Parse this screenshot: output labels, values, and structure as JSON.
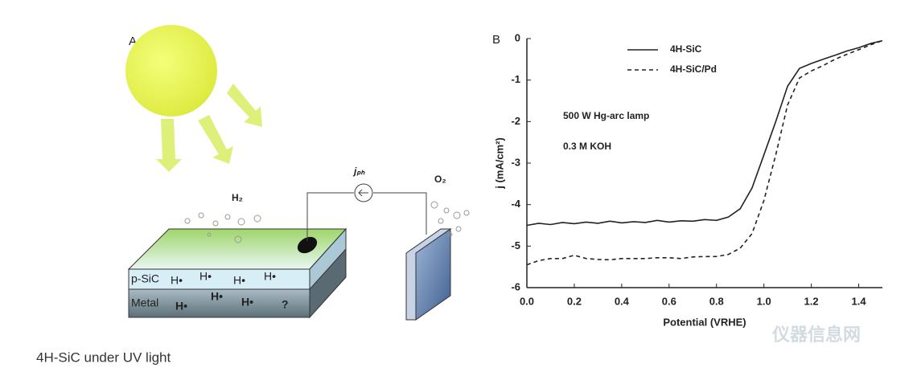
{
  "diagram": {
    "panel": "A",
    "h2": "H₂",
    "jph": "jₚₕ",
    "o2": "O₂",
    "layer_top": "p-SiC",
    "layer_bottom": "Metal",
    "top_radicals": [
      "H•",
      "H•",
      "H•",
      "H•"
    ],
    "bottom_radicals": [
      "H•",
      "H•",
      "H•",
      "?"
    ]
  },
  "chart_data": {
    "type": "line",
    "panel": "B",
    "x_label": "Potential (VRHE)",
    "y_label": "j (mA/cm²)",
    "annotations": [
      "500 W Hg-arc lamp",
      "0.3 M KOH"
    ],
    "x": [
      0,
      0.05,
      0.1,
      0.15,
      0.2,
      0.25,
      0.3,
      0.35,
      0.4,
      0.45,
      0.5,
      0.55,
      0.6,
      0.65,
      0.7,
      0.75,
      0.8,
      0.85,
      0.9,
      0.95,
      1.0,
      1.05,
      1.1,
      1.15,
      1.2,
      1.25,
      1.3,
      1.35,
      1.4,
      1.45,
      1.5
    ],
    "series": [
      {
        "name": "4H-SiC",
        "color": "#222222",
        "dashed": false,
        "values": [
          -4.5,
          -4.45,
          -4.48,
          -4.43,
          -4.46,
          -4.42,
          -4.45,
          -4.4,
          -4.44,
          -4.41,
          -4.43,
          -4.38,
          -4.42,
          -4.39,
          -4.4,
          -4.36,
          -4.38,
          -4.3,
          -4.1,
          -3.6,
          -2.8,
          -2.0,
          -1.15,
          -0.72,
          -0.6,
          -0.5,
          -0.4,
          -0.3,
          -0.22,
          -0.12,
          -0.05
        ]
      },
      {
        "name": "4H-SiC/Pd",
        "color": "#222222",
        "dashed": true,
        "values": [
          -5.45,
          -5.35,
          -5.3,
          -5.3,
          -5.22,
          -5.3,
          -5.32,
          -5.33,
          -5.3,
          -5.3,
          -5.3,
          -5.28,
          -5.28,
          -5.3,
          -5.26,
          -5.25,
          -5.25,
          -5.2,
          -5.05,
          -4.7,
          -3.9,
          -2.8,
          -1.6,
          -0.95,
          -0.78,
          -0.65,
          -0.5,
          -0.38,
          -0.27,
          -0.15,
          -0.05
        ]
      }
    ],
    "xlim": [
      0,
      1.5
    ],
    "ylim": [
      -6,
      0
    ],
    "xticks": [
      {
        "value": 0,
        "label": "0.0"
      },
      0.2,
      0.4,
      0.6,
      0.8,
      {
        "value": 1,
        "label": "1.0"
      },
      1.2,
      1.4
    ],
    "yticks": [
      0,
      -1,
      -2,
      -3,
      -4,
      -5,
      -6
    ],
    "legend": "top-center",
    "grid": false
  },
  "caption": "4H-SiC under UV light",
  "watermark": "仪器信息网"
}
